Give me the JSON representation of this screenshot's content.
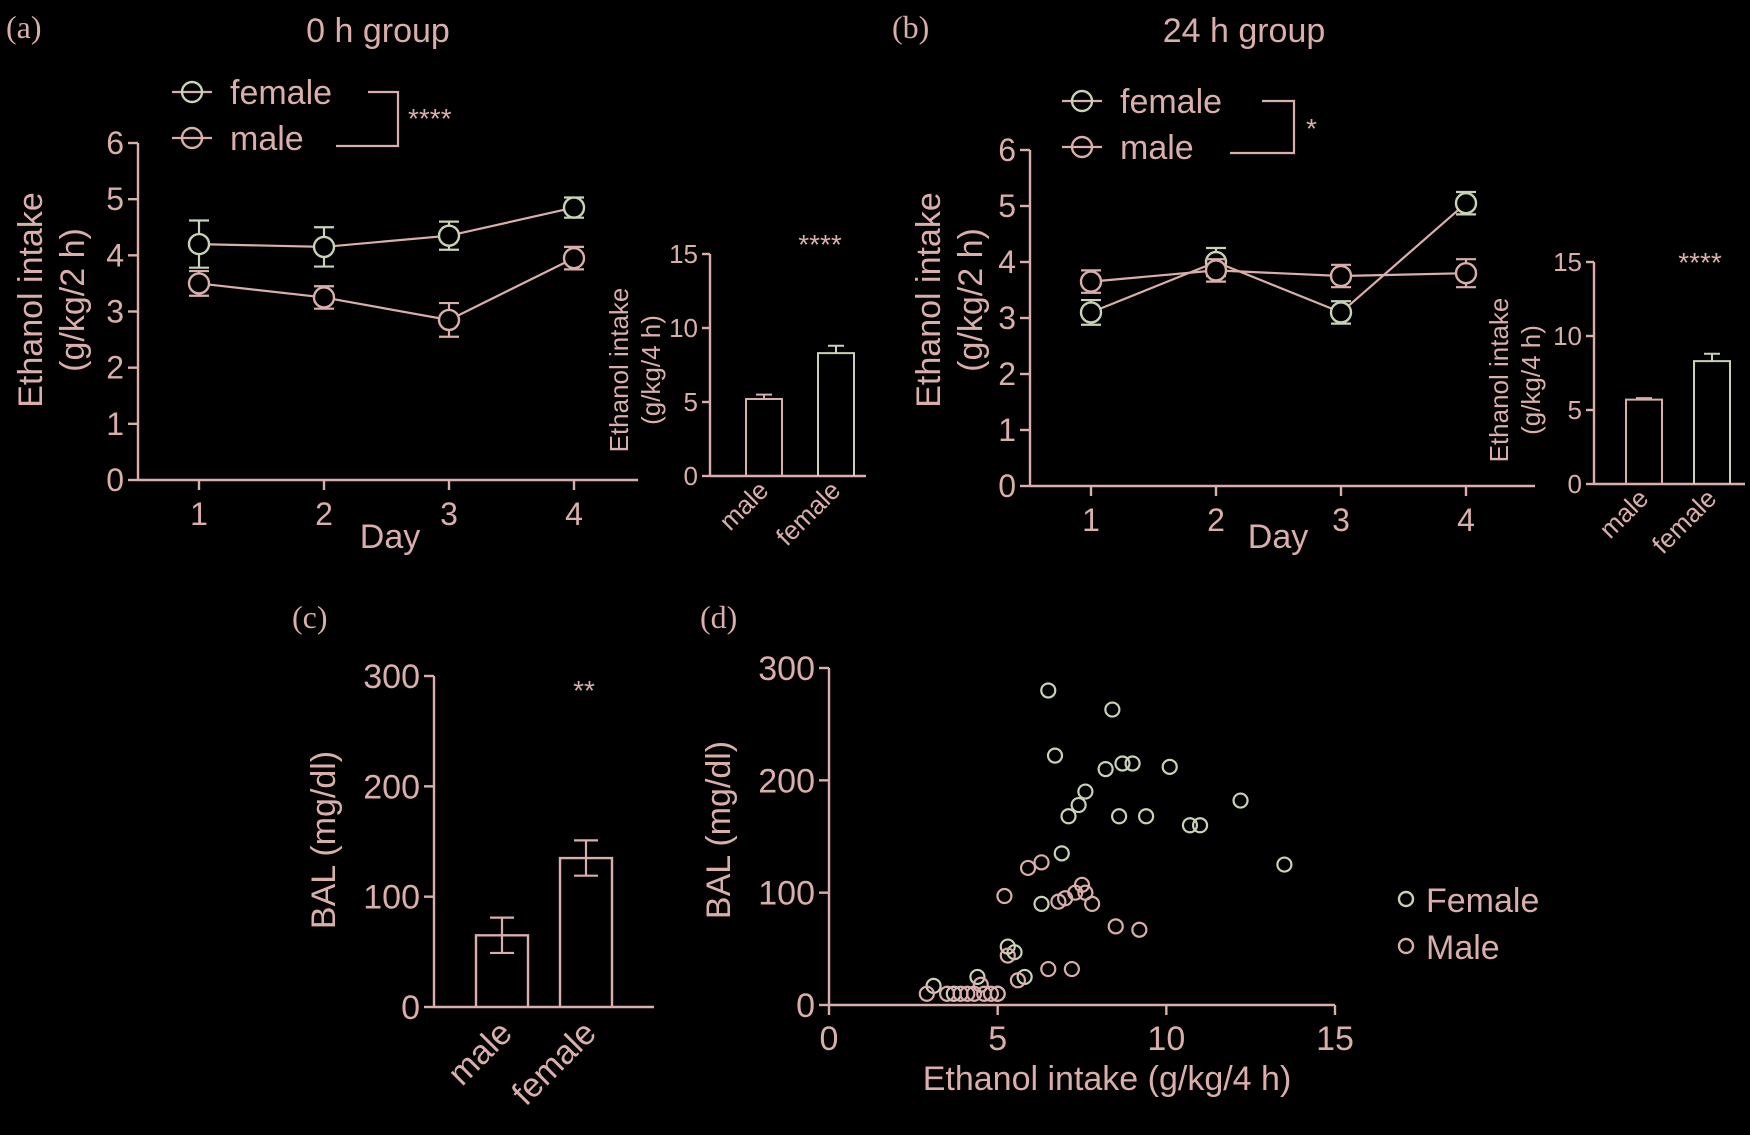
{
  "chart_data": [
    {
      "id": "a",
      "panel_label": "(a)",
      "type": "line",
      "title": "0 h group",
      "xlabel": "Day",
      "ylabel_line1": "Ethanol intake",
      "ylabel_line2": "(g/kg/2 h)",
      "x": [
        1,
        2,
        3,
        4
      ],
      "ylim": [
        0,
        6
      ],
      "yticks": [
        0,
        1,
        2,
        3,
        4,
        5,
        6
      ],
      "series": [
        {
          "name": "female",
          "values": [
            4.2,
            4.15,
            4.35,
            4.85
          ],
          "errors": [
            0.42,
            0.35,
            0.25,
            0.18
          ]
        },
        {
          "name": "male",
          "values": [
            3.5,
            3.25,
            2.85,
            3.95
          ],
          "errors": [
            0.22,
            0.2,
            0.3,
            0.2
          ]
        }
      ],
      "significance": "****",
      "inset": {
        "type": "bar",
        "categories": [
          "male",
          "female"
        ],
        "values": [
          5.2,
          8.3
        ],
        "errors": [
          0.3,
          0.5
        ],
        "ylim": [
          0,
          15
        ],
        "yticks": [
          0,
          5,
          10,
          15
        ],
        "ylabel_line1": "Ethanol intake",
        "ylabel_line2": "(g/kg/4 h)",
        "significance": "****"
      }
    },
    {
      "id": "b",
      "panel_label": "(b)",
      "type": "line",
      "title": "24 h group",
      "xlabel": "Day",
      "ylabel_line1": "Ethanol intake",
      "ylabel_line2": "(g/kg/2 h)",
      "x": [
        1,
        2,
        3,
        4
      ],
      "ylim": [
        0,
        6
      ],
      "yticks": [
        0,
        1,
        2,
        3,
        4,
        5,
        6
      ],
      "series": [
        {
          "name": "female",
          "values": [
            3.1,
            4.0,
            3.1,
            5.05
          ],
          "errors": [
            0.22,
            0.25,
            0.2,
            0.2
          ]
        },
        {
          "name": "male",
          "values": [
            3.65,
            3.85,
            3.75,
            3.8
          ],
          "errors": [
            0.2,
            0.2,
            0.2,
            0.25
          ]
        }
      ],
      "significance": "*",
      "inset": {
        "type": "bar",
        "categories": [
          "male",
          "female"
        ],
        "values": [
          5.7,
          8.3
        ],
        "errors": [
          0.1,
          0.5
        ],
        "ylim": [
          0,
          15
        ],
        "yticks": [
          0,
          5,
          10,
          15
        ],
        "ylabel_line1": "Ethanol intake",
        "ylabel_line2": "(g/kg/4 h)",
        "significance": "****"
      }
    },
    {
      "id": "c",
      "panel_label": "(c)",
      "type": "bar",
      "ylabel": "BAL (mg/dl)",
      "categories": [
        "male",
        "female"
      ],
      "values": [
        65,
        135
      ],
      "errors": [
        16,
        16
      ],
      "ylim": [
        0,
        300
      ],
      "yticks": [
        0,
        100,
        200,
        300
      ],
      "significance": "**"
    },
    {
      "id": "d",
      "panel_label": "(d)",
      "type": "scatter",
      "xlabel": "Ethanol intake (g/kg/4 h)",
      "ylabel": "BAL (mg/dl)",
      "xlim": [
        0,
        15
      ],
      "ylim": [
        0,
        300
      ],
      "xticks": [
        0,
        5,
        10,
        15
      ],
      "yticks": [
        0,
        100,
        200,
        300
      ],
      "legend": [
        "Female",
        "Male"
      ],
      "series": [
        {
          "name": "Female",
          "points": [
            [
              3.1,
              17
            ],
            [
              3.7,
              10
            ],
            [
              4.4,
              25
            ],
            [
              5.0,
              10
            ],
            [
              5.3,
              52
            ],
            [
              5.5,
              47
            ],
            [
              5.8,
              25
            ],
            [
              6.3,
              90
            ],
            [
              6.5,
              280
            ],
            [
              6.7,
              222
            ],
            [
              6.9,
              135
            ],
            [
              7.1,
              168
            ],
            [
              7.4,
              178
            ],
            [
              7.6,
              190
            ],
            [
              8.2,
              210
            ],
            [
              8.4,
              263
            ],
            [
              8.6,
              168
            ],
            [
              8.7,
              215
            ],
            [
              9.0,
              215
            ],
            [
              9.4,
              168
            ],
            [
              10.1,
              212
            ],
            [
              10.7,
              160
            ],
            [
              11.0,
              160
            ],
            [
              12.2,
              182
            ],
            [
              13.5,
              125
            ]
          ]
        },
        {
          "name": "Male",
          "points": [
            [
              2.9,
              10
            ],
            [
              3.5,
              10
            ],
            [
              3.9,
              10
            ],
            [
              4.1,
              10
            ],
            [
              4.3,
              10
            ],
            [
              4.5,
              18
            ],
            [
              4.6,
              10
            ],
            [
              4.8,
              10
            ],
            [
              5.0,
              10
            ],
            [
              5.2,
              97
            ],
            [
              5.3,
              44
            ],
            [
              5.6,
              22
            ],
            [
              5.9,
              122
            ],
            [
              6.3,
              127
            ],
            [
              6.5,
              32
            ],
            [
              6.8,
              92
            ],
            [
              7.0,
              95
            ],
            [
              7.2,
              32
            ],
            [
              7.3,
              100
            ],
            [
              7.5,
              107
            ],
            [
              7.6,
              100
            ],
            [
              7.8,
              90
            ],
            [
              8.5,
              70
            ],
            [
              9.2,
              67
            ]
          ]
        }
      ]
    }
  ]
}
